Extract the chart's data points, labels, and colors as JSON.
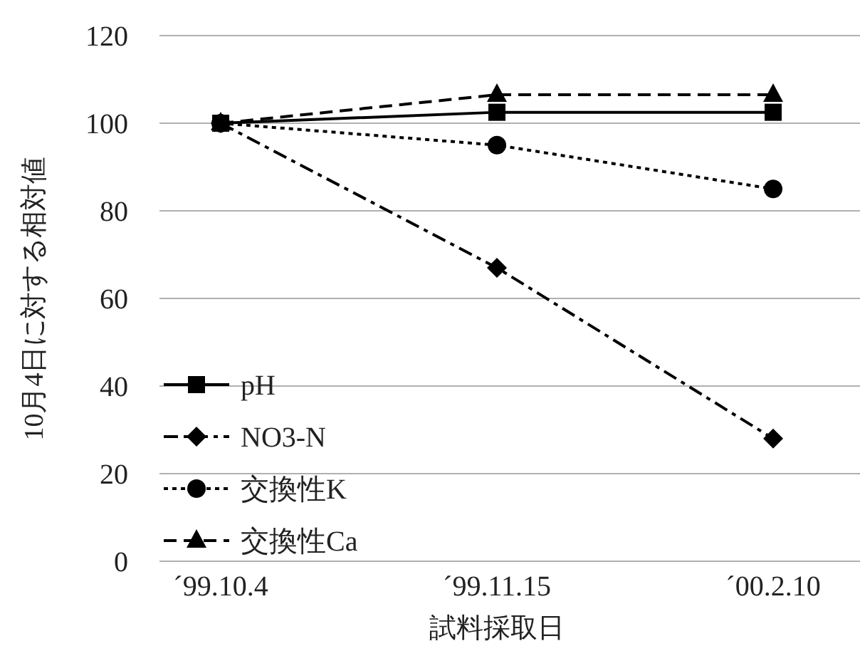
{
  "chart_data": {
    "type": "line",
    "xlabel": "試料採取日",
    "ylabel": "10月4日に対する相対値",
    "categories": [
      "´99.10.4",
      "´99.11.15",
      "´00.2.10"
    ],
    "series": [
      {
        "name": "pH",
        "color": "#000000",
        "marker": "square",
        "line_style": "solid",
        "values": [
          100,
          102.5,
          102.5
        ]
      },
      {
        "name": "NO3-N",
        "color": "#000000",
        "marker": "diamond",
        "line_style": "dashdot",
        "values": [
          100,
          67,
          28
        ]
      },
      {
        "name": "交換性K",
        "color": "#000000",
        "marker": "circle",
        "line_style": "dotted",
        "values": [
          100,
          95,
          85
        ]
      },
      {
        "name": "交換性Ca",
        "color": "#000000",
        "marker": "triangle",
        "line_style": "dashed",
        "values": [
          100,
          106.5,
          106.5
        ]
      }
    ],
    "ylim": [
      0,
      120
    ],
    "yticks": [
      0,
      20,
      40,
      60,
      80,
      100,
      120
    ],
    "grid": "y",
    "legend": "left"
  }
}
